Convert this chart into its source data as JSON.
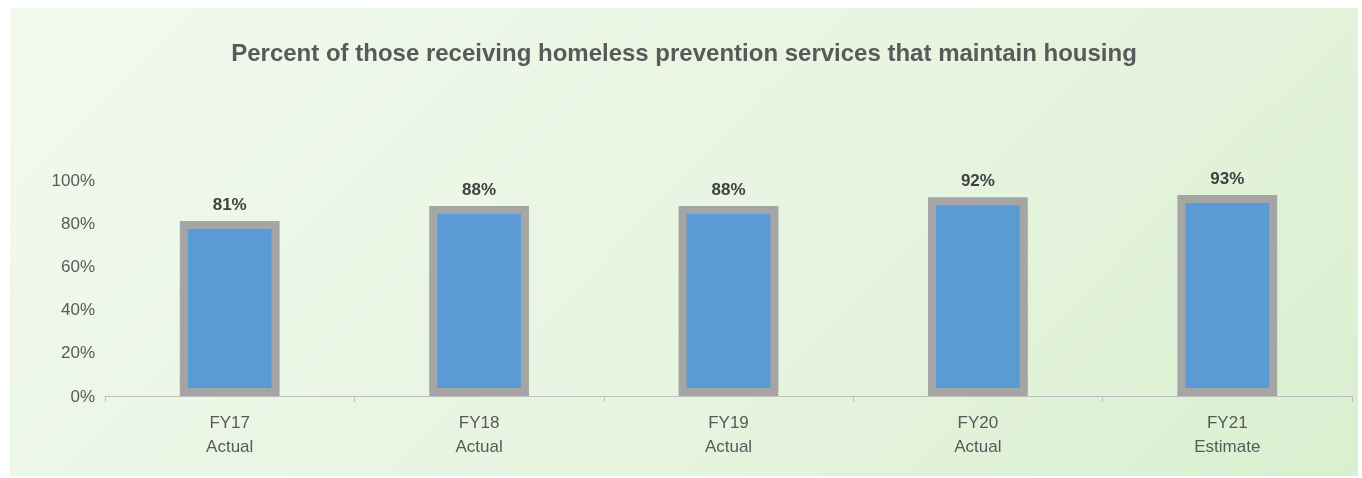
{
  "chart_data": {
    "type": "bar",
    "title": "Percent of those receiving homeless prevention services that maintain housing",
    "categories": [
      "FY17\nActual",
      "FY18\nActual",
      "FY19\nActual",
      "FY20\nActual",
      "FY21\nEstimate"
    ],
    "values": [
      81,
      88,
      88,
      92,
      93
    ],
    "color": "#5b9bd5",
    "value_labels": [
      "81%",
      "88%",
      "88%",
      "92%",
      "93%"
    ],
    "ylim": [
      0,
      100
    ],
    "yticks": [
      {
        "value": 0,
        "label": "0%"
      },
      {
        "value": 20,
        "label": "20%"
      },
      {
        "value": 40,
        "label": "40%"
      },
      {
        "value": 60,
        "label": "60%"
      },
      {
        "value": 80,
        "label": "80%"
      },
      {
        "value": 100,
        "label": "100%"
      }
    ],
    "grid": false
  }
}
